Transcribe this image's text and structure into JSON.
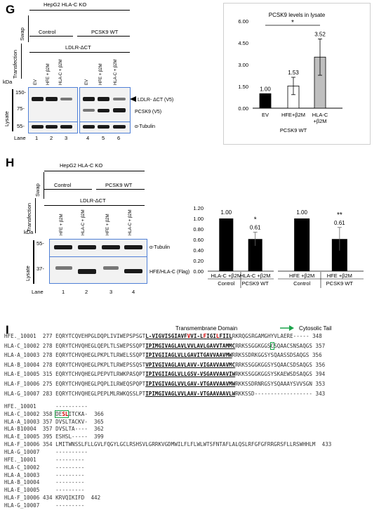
{
  "panel_g": {
    "letter": "G",
    "cell_line": "HepG2 HLA-C KO",
    "swap_label": "Swap",
    "transfection_label": "Transfection",
    "control": "Control",
    "pcsk9_wt": "PCSK9 WT",
    "ldlr": "LDLR-ΔCT",
    "lanes": [
      "EV",
      "HFE + β2M",
      "HLA-C + β2M",
      "EV",
      "HFE + β2M",
      "HLA-C + β2M"
    ],
    "kda": "kDa",
    "markers": [
      "150-",
      "75-",
      "55-"
    ],
    "lysate": "Lysate",
    "bands": [
      "LDLR- ΔCT (V5)",
      "PCSK9 (V5)",
      "α-Tubulin"
    ],
    "lane_label": "Lane",
    "lane_numbers": [
      "1",
      "2",
      "3",
      "4",
      "5",
      "6"
    ]
  },
  "panel_h": {
    "letter": "H",
    "cell_line": "HepG2 HLA-C KO",
    "swap_label": "Swap",
    "transfection_label": "Transfection",
    "control": "Control",
    "pcsk9_wt": "PCSK9 WT",
    "ldlr": "LDLR-ΔCT",
    "lanes": [
      "HFE + β2M",
      "HLA-C + β2M",
      "HFE + β2M",
      "HLA-C + β2M"
    ],
    "kda": "kDa",
    "markers": [
      "55-",
      "37-"
    ],
    "lysate": "Lysate",
    "bands": [
      "α-Tubulin",
      "HFE/HLA-C (Flag)"
    ],
    "lane_label": "Lane",
    "lane_numbers": [
      "1",
      "2",
      "3",
      "4"
    ]
  },
  "chart_data": [
    {
      "type": "bar",
      "title": "PCSK9 levels in lysate",
      "categories": [
        "EV",
        "HFE+β2M",
        "HLA-C\n+β2M"
      ],
      "values": [
        1.0,
        1.53,
        3.52
      ],
      "value_labels": [
        "1.00",
        "1.53",
        "3.52"
      ],
      "errors": [
        0.0,
        0.6,
        1.25
      ],
      "colors": [
        "#000000",
        "#ffffff",
        "#bfbfbf"
      ],
      "ylim": [
        0,
        6
      ],
      "yticks": [
        "0.00",
        "1.50",
        "3.00",
        "4.50",
        "6.00"
      ],
      "group_label": "PCSK9 WT",
      "significance": "*"
    },
    {
      "type": "bar",
      "categories": [
        "HLA-C +β2M",
        "HLA-C +β2M"
      ],
      "values": [
        1.0,
        0.61
      ],
      "value_labels": [
        "1.00",
        "0.61"
      ],
      "errors": [
        0.0,
        0.13
      ],
      "ylim": [
        0,
        1.2
      ],
      "yticks": [
        "0.00",
        "0.20",
        "0.40",
        "0.60",
        "0.80",
        "1.00",
        "1.20"
      ],
      "group_labels": [
        "Control",
        "PCSK9 WT"
      ],
      "significance": "*"
    },
    {
      "type": "bar",
      "categories": [
        "HFE +β2M",
        "HFE +β2M"
      ],
      "values": [
        1.0,
        0.61
      ],
      "value_labels": [
        "1.00",
        "0.61"
      ],
      "errors": [
        0.0,
        0.22
      ],
      "ylim": [
        0,
        1.2
      ],
      "yticks": [
        "0.00",
        "0.20",
        "0.40",
        "0.60",
        "0.80",
        "1.00",
        "1.20"
      ],
      "group_labels": [
        "Control",
        "PCSK9 WT"
      ],
      "significance": "**"
    }
  ],
  "panel_i": {
    "letter": "I",
    "tm_domain": "Transmembrane Domain",
    "cyto_tail": "Cytosolic Tail",
    "block1": [
      {
        "name": "HFE._10001",
        "start": "277",
        "pre": "EQRYTCQVEHPGLDQPLIVIWEPSPSGT",
        "tm": "L-VIGVISGIAVFVVI-LFIGILFIIL",
        "post": "RKRQGSRGAMGHYVLAERE-----",
        "end": "348"
      },
      {
        "name": "HLA-C_10002",
        "start": "278",
        "pre": "EQRYTCHVQHEGLQEPLTLSWEPSSQPT",
        "tm": "IPIMGIVAGLAVLVVLAVLGAVVTAMMC",
        "post": "RRKSSGGKGGSCSQAACSNSAQGS",
        "end": "357"
      },
      {
        "name": "HLA-A_10003",
        "start": "278",
        "pre": "EQRYTCHVQHEGLPKPLTLRWELSSQPT",
        "tm": "IPIVGIIAGLVLLGAVITGAVVAAVMW",
        "post": "RRKSSDRKGGSYSQAASSDSAQGS",
        "end": "356"
      },
      {
        "name": "HLA-B_10004",
        "start": "278",
        "pre": "EQRYTCHVQHEGLPKPLTLRWEPSSQST",
        "tm": "VPIVGIVAGLAVLAVV-VIGAVVAAVMC",
        "post": "RRKSSGGKGGSYSQAACSDSAQGS",
        "end": "356"
      },
      {
        "name": "HLA-E_10005",
        "start": "315",
        "pre": "EQRYTCHVQHEGLPEPVTLRWKPASQPT",
        "tm": "IPIVGIIAGLVLLGSV-VSGAVVAAVIW",
        "post": "RKKSSGGKGGSYSKAEWSDSAQGS",
        "end": "394"
      },
      {
        "name": "HLA-F_10006",
        "start": "275",
        "pre": "EQRYTCHVQHEGLPQPLILRWEQSPQPT",
        "tm": "IPIVGIVAGLVVLGAV-VTGAVVAAVMW",
        "post": "RKKSSDRNRGSYSQAAAYSVVSGN",
        "end": "353"
      },
      {
        "name": "HLA-G_10007",
        "start": "283",
        "pre": "EQRYTCHVQHEGLPEPLMLRWKQSSLPT",
        "tm": "IPIMGIVAGLVVLAAV-VTGAAVAAVLW",
        "post": "RKKSSD------------------",
        "end": "343"
      }
    ],
    "block2": [
      {
        "name": "HFE._10001",
        "start": "",
        "seq": "----------",
        "end": ""
      },
      {
        "name": "HLA-C_10002",
        "start": "358",
        "seq": "DESLITCKA-",
        "end": "366"
      },
      {
        "name": "HLA-A_10003",
        "start": "357",
        "seq": "DVSLTACKV-",
        "end": "365"
      },
      {
        "name": "HLA-B10004",
        "start": "357",
        "seq": "DVSLTA----",
        "end": "362"
      },
      {
        "name": "HLA-E_10005",
        "start": "395",
        "seq": "ESHSL-----",
        "end": "399"
      },
      {
        "name": "HLA-F_10006",
        "start": "354",
        "seq": "LMITWNSSLFLLGVLFQGYLGCLRSHSVLGRRKVGDMWILFLFLWLWTSFNTAFLALQSLRFGFGFRRGRSFLLRSWHHLM",
        "end": "433"
      },
      {
        "name": "HLA-G_10007",
        "start": "",
        "seq": "----------",
        "end": ""
      }
    ],
    "block3": [
      {
        "name": "HFE._10001",
        "start": "",
        "seq": "---------",
        "end": ""
      },
      {
        "name": "HLA-C_10002",
        "start": "",
        "seq": "---------",
        "end": ""
      },
      {
        "name": "HLA-A_10003",
        "start": "",
        "seq": "---------",
        "end": ""
      },
      {
        "name": "HLA-B_10004",
        "start": "",
        "seq": "---------",
        "end": ""
      },
      {
        "name": "HLA-E_10005",
        "start": "",
        "seq": "---------",
        "end": ""
      },
      {
        "name": "HLA-F_10006",
        "start": "434",
        "seq": "KRVQIKIFD",
        "end": "442"
      },
      {
        "name": "HLA-G_10007",
        "start": "",
        "seq": "---------",
        "end": ""
      }
    ]
  }
}
